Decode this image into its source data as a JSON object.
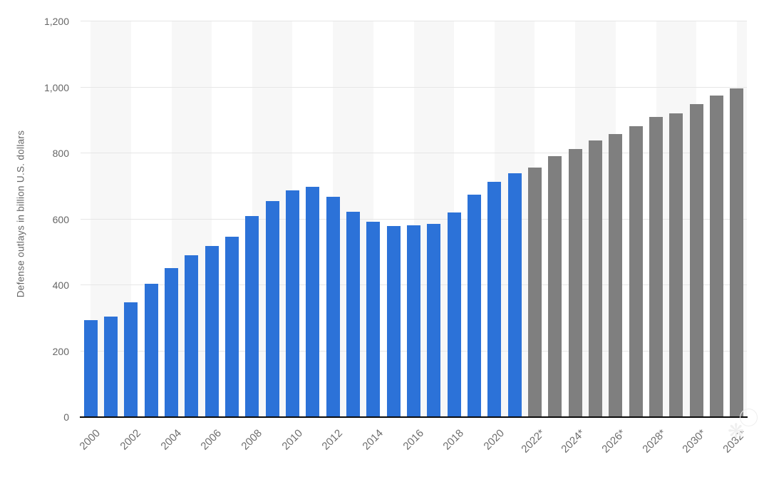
{
  "chart_data": {
    "type": "bar",
    "title": "",
    "xlabel": "",
    "ylabel": "Defense outlays in billion U.S. dollars",
    "ylim": [
      0,
      1200
    ],
    "y_ticks": [
      0,
      200,
      400,
      600,
      800,
      1000,
      1200
    ],
    "y_tick_labels": [
      "0",
      "200",
      "400",
      "600",
      "800",
      "1,000",
      "1,200"
    ],
    "x_tick_step": 2,
    "grid": "horizontal",
    "legend": "none",
    "categories": [
      "2000",
      "2001",
      "2002",
      "2003",
      "2004",
      "2005",
      "2006",
      "2007",
      "2008",
      "2009",
      "2010",
      "2011",
      "2012",
      "2013",
      "2014",
      "2015",
      "2016",
      "2017",
      "2018",
      "2019",
      "2020",
      "2021",
      "2022*",
      "2023*",
      "2024*",
      "2025*",
      "2026*",
      "2027*",
      "2028*",
      "2029*",
      "2030*",
      "2031*",
      "2032*"
    ],
    "values": [
      294,
      305,
      348,
      405,
      452,
      491,
      518,
      546,
      610,
      655,
      687,
      698,
      668,
      622,
      593,
      579,
      582,
      587,
      620,
      675,
      713,
      739,
      757,
      791,
      812,
      840,
      859,
      883,
      911,
      921,
      950,
      976,
      997
    ],
    "forecast_start_index": 22,
    "colors": {
      "actual_bar": "#2c72d8",
      "forecast_bar": "#7f7f7f",
      "grid_line": "#e6e6e6",
      "alt_band": "#f7f7f7",
      "axis_line": "#0a0a0a",
      "tick_text": "#666666"
    }
  }
}
